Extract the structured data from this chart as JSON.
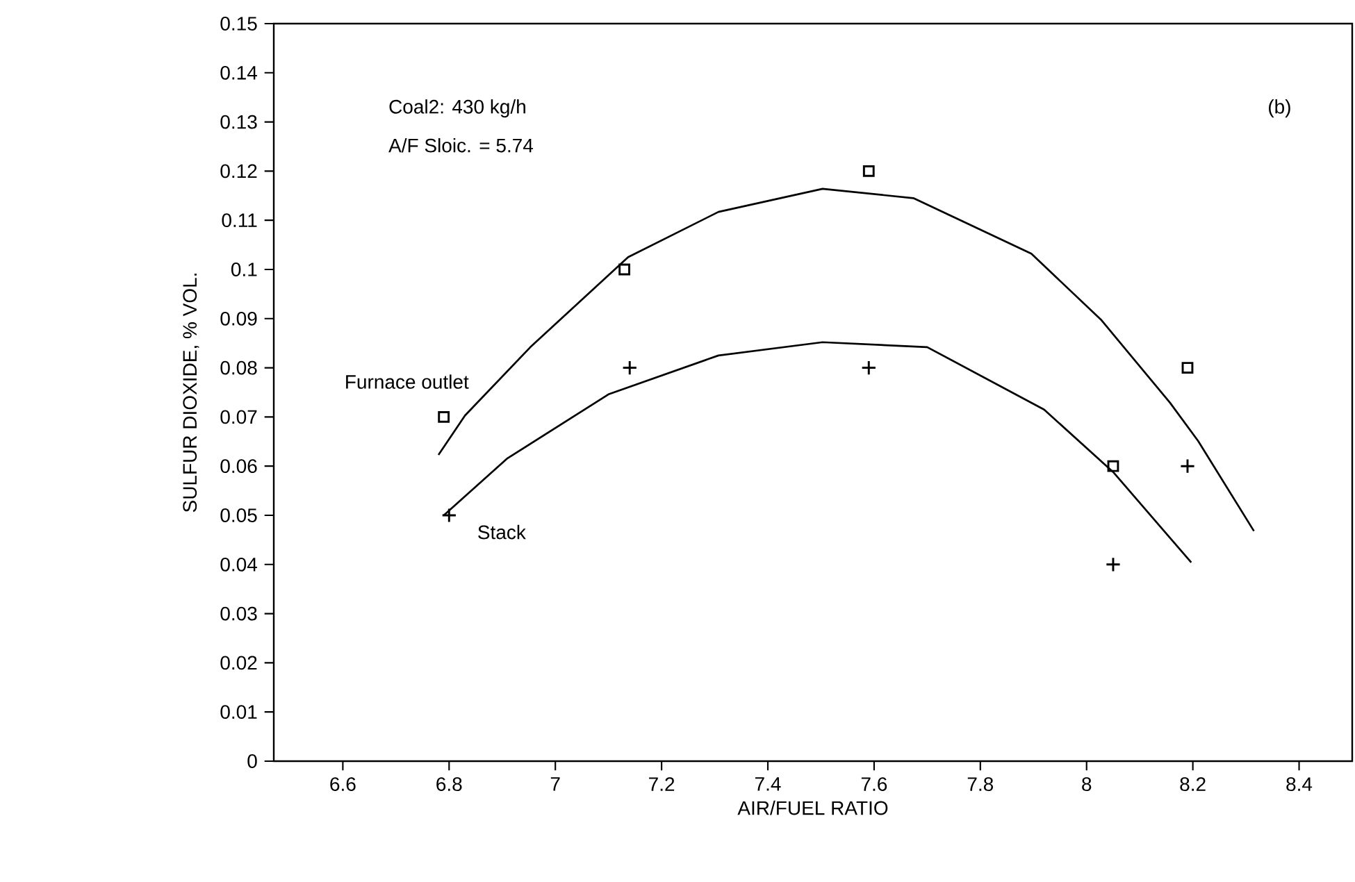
{
  "chart_data": {
    "type": "scatter",
    "xlabel": "AIR/FUEL RATIO",
    "ylabel": "SULFUR DIOXIDE, % VOL.",
    "annotations": [
      "Coal2: 430 kg/h",
      "A/F Sloic. = 5.74",
      "(b)"
    ],
    "xlim": [
      6.47,
      8.5
    ],
    "ylim": [
      0,
      0.15
    ],
    "xticks": [
      6.6,
      6.8,
      7,
      7.2,
      7.4,
      7.6,
      7.8,
      8,
      8.2,
      8.4
    ],
    "yticks": [
      0,
      0.01,
      0.02,
      0.03,
      0.04,
      0.05,
      0.06,
      0.07,
      0.08,
      0.09,
      0.1,
      0.11,
      0.12,
      0.13,
      0.14,
      0.15
    ],
    "grid": false,
    "series": [
      {
        "name": "Furnace outlet",
        "color": "#000000",
        "marker": "square",
        "x": [
          6.79,
          7.13,
          7.59,
          8.05,
          8.19
        ],
        "values": [
          0.07,
          0.1,
          0.12,
          0.06,
          0.08
        ]
      },
      {
        "name": "Stack",
        "color": "#000000",
        "marker": "cross",
        "x": [
          6.8,
          7.14,
          7.59,
          8.05,
          8.19
        ],
        "values": [
          0.05,
          0.08,
          0.08,
          0.04,
          0.06
        ]
      },
      {
        "type": "line",
        "color": "#000000",
        "marker": "none",
        "x": [
          6.78,
          6.83,
          6.953,
          7.137,
          7.307,
          7.503,
          7.674,
          7.896,
          8.027,
          8.157,
          8.21,
          8.315
        ],
        "values": [
          0.0623,
          0.0703,
          0.0842,
          0.1025,
          0.1117,
          0.1164,
          0.1145,
          0.1032,
          0.0898,
          0.0729,
          0.0651,
          0.0468
        ]
      },
      {
        "type": "line",
        "color": "#000000",
        "marker": "none",
        "x": [
          6.79,
          6.91,
          7.1,
          7.307,
          7.503,
          7.7,
          7.92,
          8.05,
          8.197
        ],
        "values": [
          0.05,
          0.0616,
          0.0746,
          0.0825,
          0.0852,
          0.0842,
          0.0715,
          0.0588,
          0.0404
        ]
      }
    ]
  }
}
